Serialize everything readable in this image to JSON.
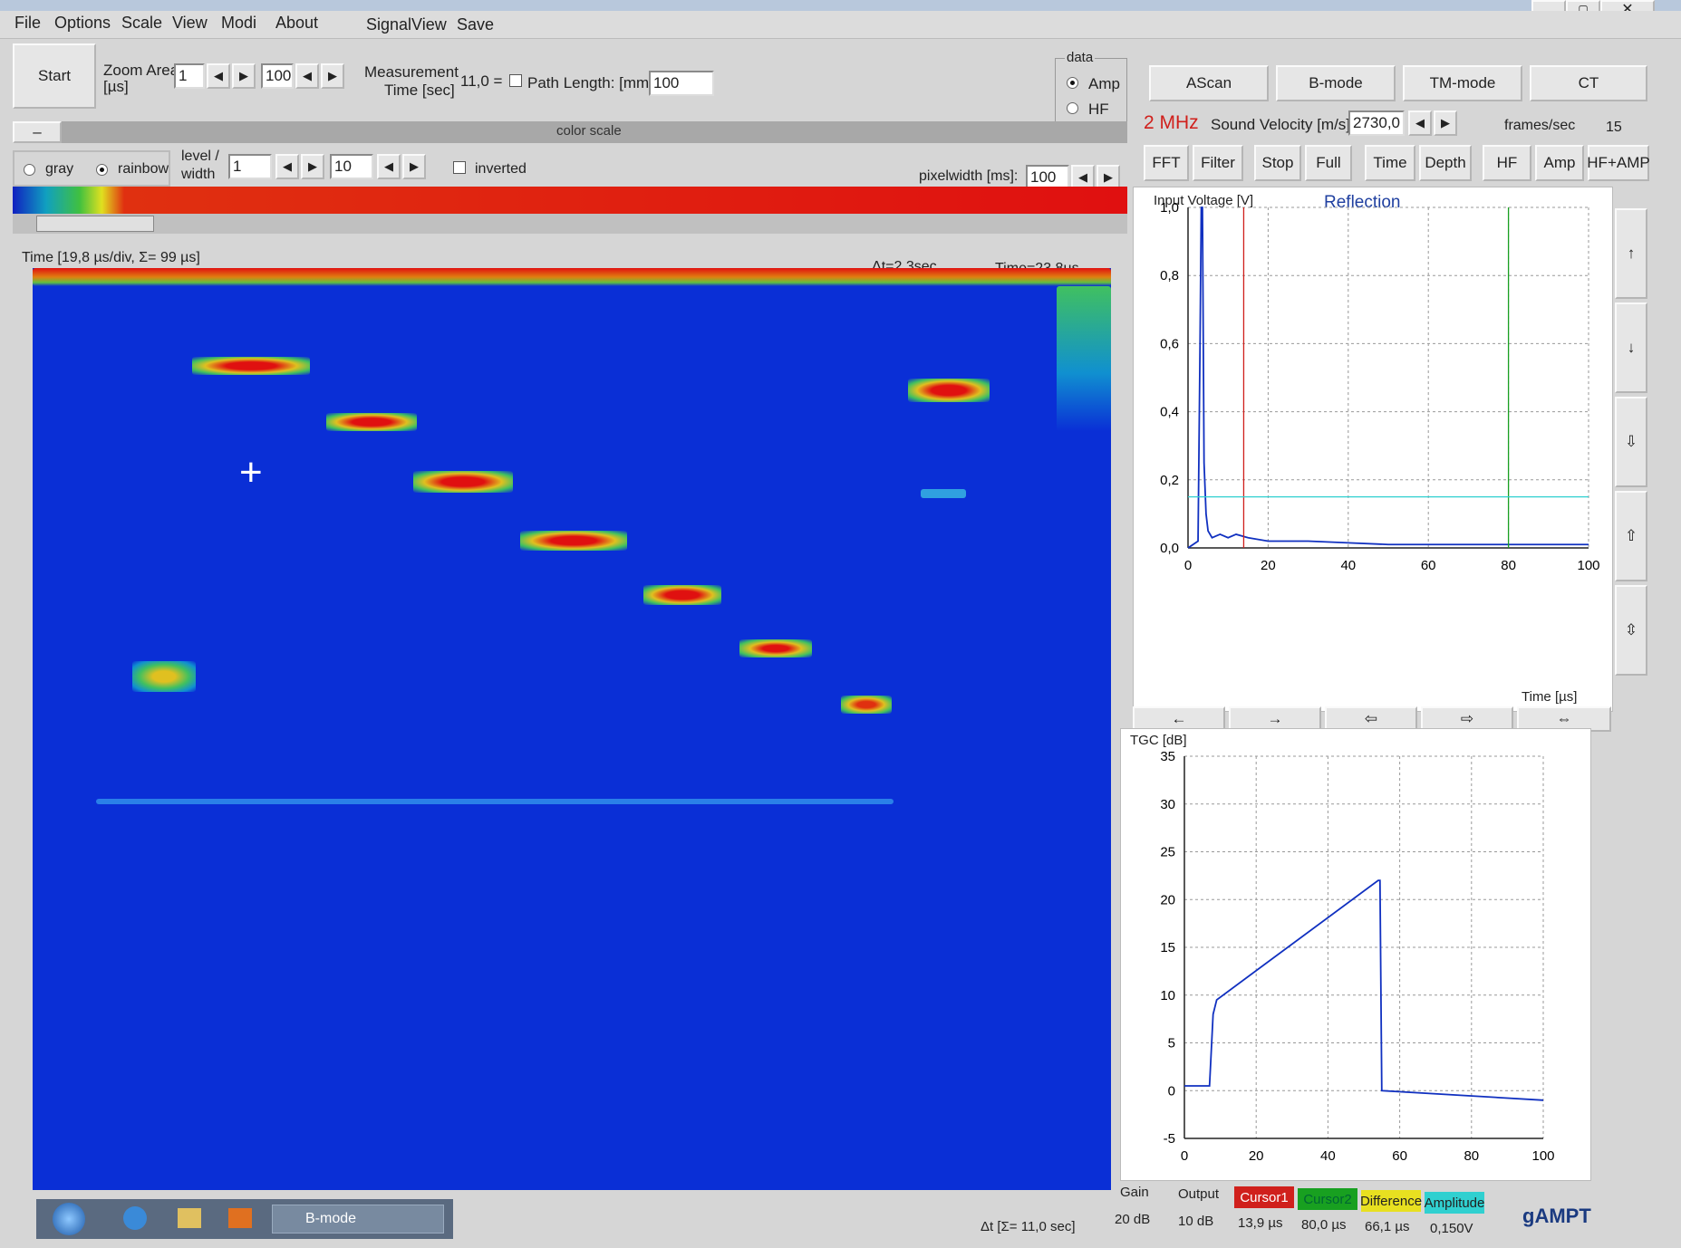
{
  "menu": [
    "File",
    "Options",
    "Scale",
    "View",
    "Modi",
    "About",
    "SignalView",
    "Save"
  ],
  "toolbar": {
    "start": "Start",
    "zoom_area_label": "Zoom Area",
    "zoom_area_unit": "[µs]",
    "zoom_from": "1",
    "zoom_to": "100",
    "measurement_label_1": "Measurement",
    "measurement_label_2": "Time [sec]",
    "measurement_value": "11,0 =",
    "path_length_label": "Path Length: [mm]",
    "path_length_value": "100",
    "data_group": "data",
    "radio_amp": "Amp",
    "radio_hf": "HF"
  },
  "colorscale": {
    "title": "color scale",
    "minus": "–",
    "gray": "gray",
    "rainbow": "rainbow",
    "level_label": "level /",
    "width_label": "width",
    "level_value": "1",
    "width_value": "10",
    "inverted": "inverted",
    "pixelwidth_label": "pixelwidth [ms]:",
    "pixelwidth_value": "100"
  },
  "bmode": {
    "time_info": "Time   [19,8 µs/div, Σ= 99 µs]",
    "delta_t": "Δt=2,3sec",
    "time_value": "Time=23,8µs",
    "footer": "Δt  [Σ= 11,0 sec]"
  },
  "modes": [
    "AScan",
    "B-mode",
    "TM-mode",
    "CT"
  ],
  "frequency": "2 MHz",
  "sound_velocity_label": "Sound Velocity [m/s]",
  "sound_velocity_value": "2730,0",
  "frames_label": "frames/sec",
  "frames_value": "15",
  "func_buttons": [
    "FFT",
    "Filter",
    "Stop",
    "Full",
    "Time",
    "Depth",
    "HF",
    "Amp",
    "HF+AMP"
  ],
  "ascan": {
    "ylabel": "Input Voltage [V]",
    "title": "Reflection",
    "xlabel": "Time [µs]",
    "nav": [
      "←",
      "→",
      "⇦",
      "⇨",
      "⇔"
    ]
  },
  "tgc": {
    "ylabel": "TGC [dB]"
  },
  "readouts": {
    "gain_label": "Gain",
    "gain_value": "20 dB",
    "output_label": "Output",
    "output_value": "10 dB",
    "cursor1": "Cursor1",
    "cursor1_value": "13,9 µs",
    "cursor2": "Cursor2",
    "cursor2_value": "80,0 µs",
    "difference": "Difference",
    "difference_value": "66,1 µs",
    "amplitude": "Amplitude",
    "amplitude_value": "0,150V",
    "brand": "gAMPT"
  },
  "taskbar": {
    "task": "B-mode"
  },
  "colors": {
    "bmode_bg": "#0a2fd6",
    "cursor1": "#d0201c",
    "cursor2": "#18a020",
    "difference": "#e8e020",
    "amplitude": "#30d0d0",
    "trace": "#1030c0"
  },
  "chart_data": [
    {
      "type": "line",
      "title": "Reflection",
      "xlabel": "Time [µs]",
      "ylabel": "Input Voltage [V]",
      "xlim": [
        0,
        100
      ],
      "ylim": [
        0,
        1.0
      ],
      "xticks": [
        0,
        20,
        40,
        60,
        80,
        100
      ],
      "yticks": [
        "0,0",
        "0,2",
        "0,4",
        "0,6",
        "0,8",
        "1,0"
      ],
      "grid": true,
      "series": [
        {
          "x": [
            0,
            2.5,
            3,
            3.3,
            3.6,
            4,
            4.5,
            5,
            6,
            8,
            10,
            12,
            15,
            20,
            30,
            40,
            50,
            60,
            70,
            80,
            90,
            100
          ],
          "y": [
            0.0,
            0.02,
            0.6,
            1.0,
            1.0,
            0.25,
            0.1,
            0.05,
            0.03,
            0.04,
            0.03,
            0.04,
            0.03,
            0.02,
            0.02,
            0.015,
            0.01,
            0.01,
            0.01,
            0.01,
            0.01,
            0.01
          ]
        }
      ],
      "cursors": {
        "cursor1": 13.9,
        "cursor2": 80.0,
        "amplitude": 0.15
      }
    },
    {
      "type": "line",
      "ylabel": "TGC [dB]",
      "xlim": [
        0,
        100
      ],
      "ylim": [
        -5,
        35
      ],
      "xticks": [
        0,
        20,
        40,
        60,
        80,
        100
      ],
      "yticks": [
        -5,
        0,
        5,
        10,
        15,
        20,
        25,
        30,
        35
      ],
      "grid": true,
      "series": [
        {
          "x": [
            0,
            7,
            8,
            9,
            54,
            54.5,
            55,
            100
          ],
          "y": [
            0.5,
            0.5,
            8,
            9.5,
            22,
            22,
            0,
            -1
          ]
        }
      ]
    }
  ]
}
